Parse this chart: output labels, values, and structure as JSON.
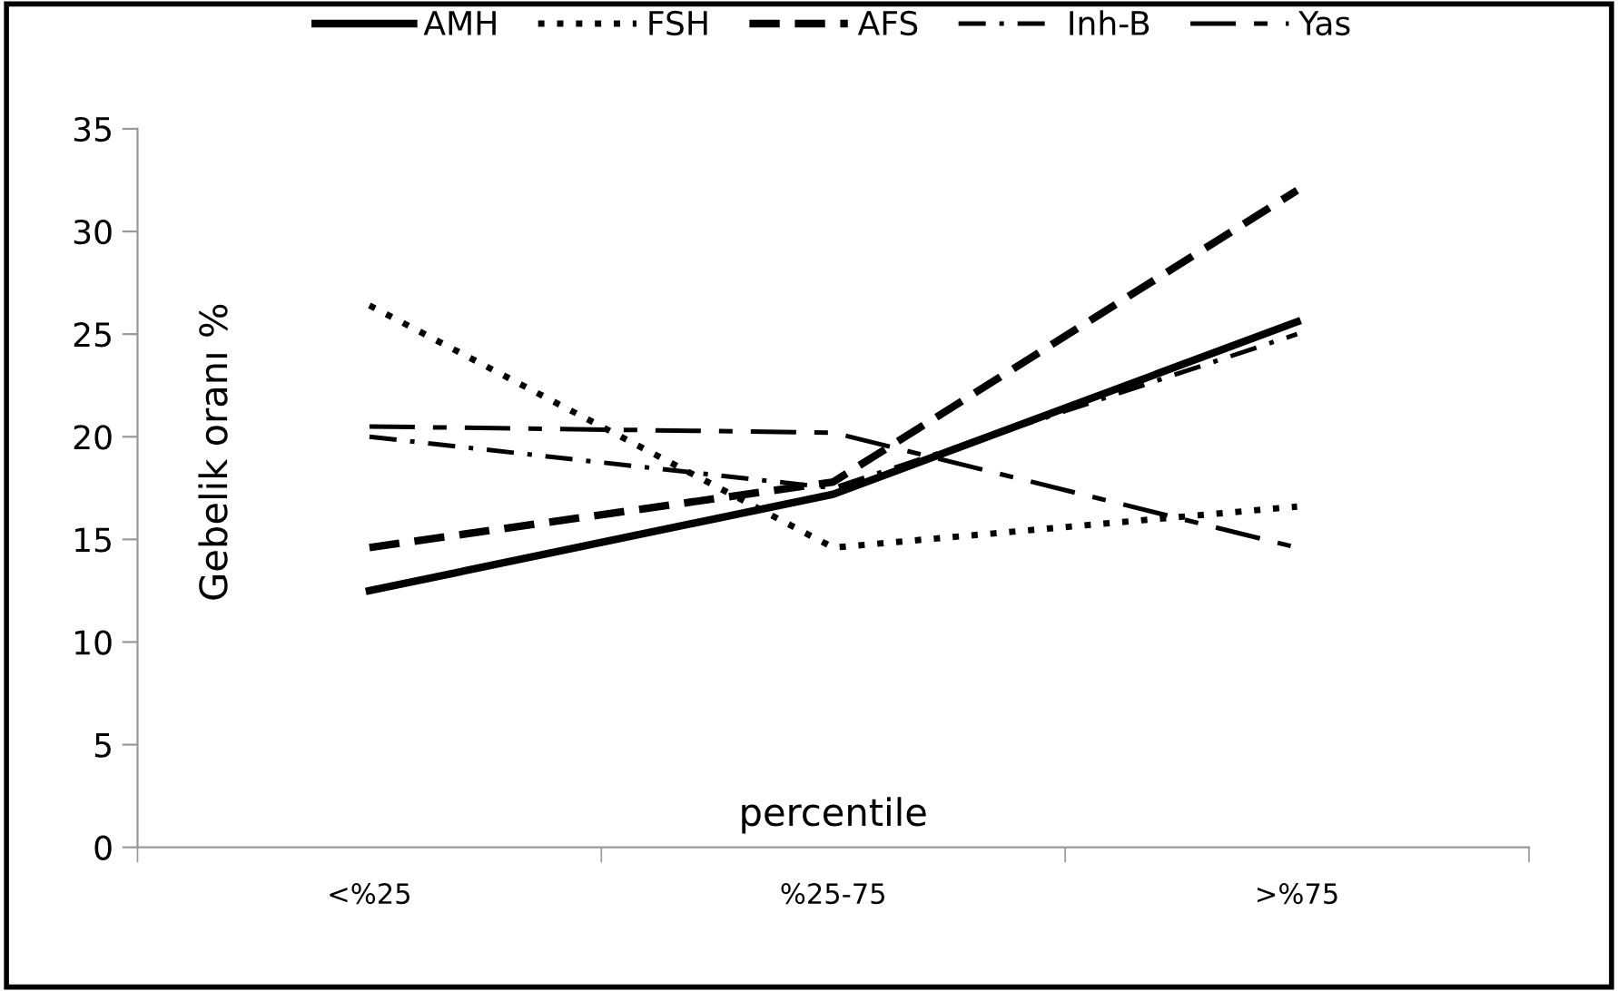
{
  "chart_data": {
    "type": "line",
    "xlabel": "percentile",
    "ylabel": "Gebelik oranı %",
    "categories": [
      "<%25",
      "%25-75",
      ">%75"
    ],
    "series": [
      {
        "name": "AMH",
        "color": "#000000",
        "line_style": "solid",
        "values": [
          12.5,
          17.2,
          25.6
        ]
      },
      {
        "name": "FSH",
        "color": "#000000",
        "line_style": "dotted",
        "values": [
          26.4,
          14.6,
          16.6
        ]
      },
      {
        "name": "AFS",
        "color": "#000000",
        "line_style": "dashed",
        "values": [
          14.6,
          17.8,
          32.0
        ]
      },
      {
        "name": "Inh-B",
        "color": "#000000",
        "line_style": "dashdot",
        "values": [
          20.0,
          17.5,
          25.0
        ]
      },
      {
        "name": "Yas",
        "color": "#000000",
        "line_style": "longdash",
        "values": [
          20.5,
          20.2,
          14.6
        ]
      }
    ],
    "ylim": [
      0,
      35
    ],
    "yticks": [
      0,
      5,
      10,
      15,
      20,
      25,
      30,
      35
    ],
    "grid": false,
    "legend": "top",
    "marker": "none"
  }
}
